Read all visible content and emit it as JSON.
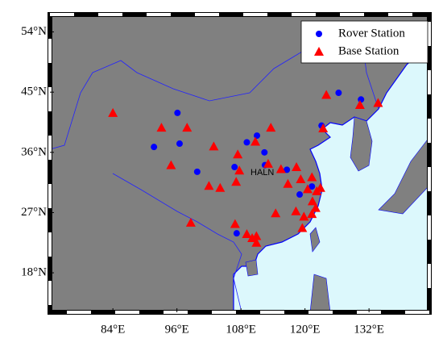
{
  "chart_data": {
    "type": "map",
    "xlim": [
      72.2,
      143.3
    ],
    "ylim": [
      12.1,
      56.6
    ],
    "xticks": [
      {
        "value": 84,
        "label": "84°E"
      },
      {
        "value": 96,
        "label": "96°E"
      },
      {
        "value": 108,
        "label": "108°E"
      },
      {
        "value": 120,
        "label": "120°E"
      },
      {
        "value": 132,
        "label": "132°E"
      }
    ],
    "yticks": [
      {
        "value": 18,
        "label": "18°N"
      },
      {
        "value": 27,
        "label": "27°N"
      },
      {
        "value": 36,
        "label": "36°N"
      },
      {
        "value": 45,
        "label": "45°N"
      },
      {
        "value": 54,
        "label": "54°N"
      }
    ],
    "series": [
      {
        "name": "Rover Station",
        "color": "#0000ff",
        "marker": "circle",
        "x": [
          96.1,
          91.7,
          96.5,
          99.8,
          106.8,
          109.1,
          111.0,
          112.4,
          112.5,
          123.1,
          126.3,
          130.5,
          121.3,
          119.0,
          107.2,
          116.6
        ],
        "y": [
          41.9,
          36.8,
          37.3,
          33.1,
          33.8,
          37.5,
          38.5,
          36.0,
          34.1,
          40.0,
          44.9,
          43.9,
          30.9,
          29.7,
          23.9,
          33.4
        ]
      },
      {
        "name": "Base Station",
        "color": "#ff0000",
        "marker": "triangle",
        "x": [
          84.0,
          93.1,
          97.9,
          94.9,
          102.9,
          107.4,
          110.7,
          113.6,
          107.7,
          107.1,
          102.0,
          104.1,
          113.1,
          115.5,
          118.4,
          116.8,
          119.2,
          121.3,
          120.5,
          122.2,
          122.9,
          121.4,
          118.3,
          119.8,
          121.3,
          122.0,
          119.5,
          114.5,
          98.6,
          106.9,
          109.1,
          110.1,
          110.9,
          110.9,
          124.0,
          130.3,
          133.7,
          123.4
        ],
        "y": [
          41.9,
          39.7,
          39.7,
          34.1,
          36.9,
          35.7,
          37.6,
          39.7,
          33.3,
          31.6,
          31.0,
          30.7,
          34.3,
          33.5,
          33.8,
          31.3,
          32.0,
          32.3,
          30.5,
          30.2,
          30.7,
          28.7,
          27.2,
          26.4,
          26.8,
          27.7,
          24.7,
          26.9,
          25.5,
          25.3,
          23.8,
          23.2,
          23.5,
          22.5,
          44.6,
          43.1,
          43.4,
          39.6
        ]
      }
    ],
    "annotations": [
      {
        "text": "HALN"
      }
    ],
    "legend": "upper right"
  }
}
